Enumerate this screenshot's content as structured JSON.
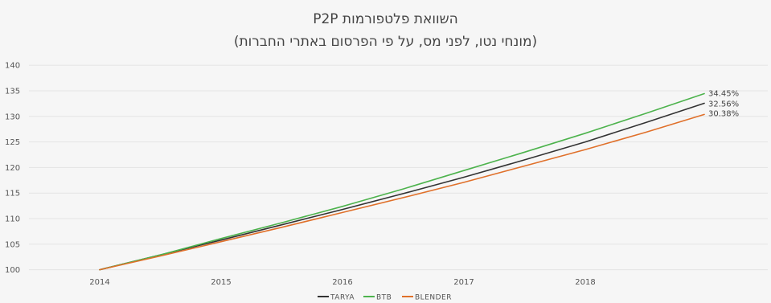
{
  "chart_data": {
    "type": "line",
    "title": "השוואת פלטפורמות P2P",
    "subtitle": "(מונחי נטו, לפני מס, על פי הפרסום באתרי החברות)",
    "xlabel": "",
    "ylabel": "",
    "x_ticks": [
      "2014",
      "2015",
      "2016",
      "2017",
      "2018"
    ],
    "y_ticks": [
      100,
      105,
      110,
      115,
      120,
      125,
      130,
      135,
      140
    ],
    "xlim": [
      2014,
      2018.98
    ],
    "ylim": [
      99,
      140.5
    ],
    "grid": true,
    "legend_position": "bottom",
    "x": [
      2014,
      2014.5,
      2015,
      2015.5,
      2016,
      2016.5,
      2017,
      2017.5,
      2018,
      2018.5,
      2018.98
    ],
    "series": [
      {
        "name": "TARYA",
        "color": "#333333",
        "values": [
          100,
          102.9,
          105.8,
          108.8,
          111.8,
          114.9,
          118.1,
          121.5,
          125.0,
          128.8,
          132.56
        ],
        "end_label": "32.56%"
      },
      {
        "name": "BTB",
        "color": "#4db34d",
        "values": [
          100,
          102.9,
          106.1,
          109.2,
          112.4,
          115.8,
          119.4,
          123.0,
          126.7,
          130.6,
          134.45
        ],
        "end_label": "34.45%"
      },
      {
        "name": "BLENDER",
        "color": "#e0702a",
        "values": [
          100,
          102.7,
          105.5,
          108.3,
          111.2,
          114.1,
          117.1,
          120.3,
          123.5,
          126.9,
          130.38
        ],
        "end_label": "30.38%"
      }
    ]
  }
}
